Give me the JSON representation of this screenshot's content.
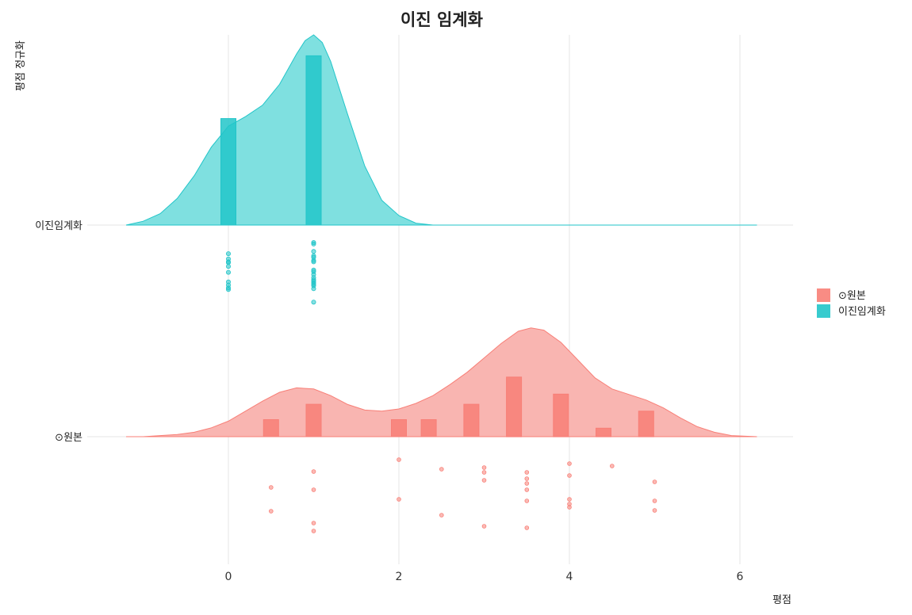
{
  "chart_data": {
    "type": "raincloud (density + histogram + jittered points)",
    "title": "이진 임계화",
    "xlabel": "평점",
    "ylabel": "평점 정규화",
    "xlim": [
      -1.2,
      6.2
    ],
    "x_ticks": [
      "0",
      "2",
      "4",
      "6"
    ],
    "x_tick_values": [
      0,
      2,
      4,
      6
    ],
    "grid": true,
    "legend": {
      "position": "right",
      "entries": [
        "⊙원본",
        "이진임계화"
      ]
    },
    "categories": [
      "이진임계화",
      "⊙원본"
    ],
    "series": [
      {
        "name": "이진임계화",
        "color": "#22C5C9",
        "fill": "#7FE0E0",
        "density": {
          "x": [
            -1.2,
            -1.0,
            -0.8,
            -0.6,
            -0.4,
            -0.2,
            0.0,
            0.2,
            0.4,
            0.6,
            0.8,
            0.9,
            1.0,
            1.1,
            1.2,
            1.4,
            1.6,
            1.8,
            2.0,
            2.2,
            2.4,
            6.2
          ],
          "y": [
            0.0,
            0.02,
            0.06,
            0.14,
            0.26,
            0.41,
            0.52,
            0.57,
            0.63,
            0.74,
            0.9,
            0.97,
            1.0,
            0.96,
            0.86,
            0.58,
            0.31,
            0.13,
            0.05,
            0.01,
            0.0,
            0.0
          ]
        },
        "histogram": {
          "x": [
            0,
            1
          ],
          "height": [
            0.56,
            0.89
          ]
        },
        "points": {
          "x": [
            0,
            0,
            0,
            0,
            0,
            0,
            0,
            0,
            0,
            0,
            1,
            1,
            1,
            1,
            1,
            1,
            1,
            1,
            1,
            1,
            1,
            1,
            1,
            1,
            1,
            1,
            1,
            1
          ],
          "jitter": [
            0.15,
            0.22,
            0.26,
            0.27,
            0.32,
            0.4,
            0.53,
            0.57,
            0.61,
            0.63,
            0.0,
            0.02,
            0.12,
            0.18,
            0.2,
            0.24,
            0.26,
            0.37,
            0.39,
            0.43,
            0.47,
            0.5,
            0.52,
            0.54,
            0.56,
            0.58,
            0.62,
            0.8
          ]
        }
      },
      {
        "name": "⊙원본",
        "color": "#F87F77",
        "fill": "#F9B5B1",
        "density": {
          "x": [
            -1.2,
            -1.0,
            -0.8,
            -0.6,
            -0.4,
            -0.2,
            0.0,
            0.2,
            0.4,
            0.6,
            0.8,
            1.0,
            1.2,
            1.4,
            1.6,
            1.8,
            2.0,
            2.2,
            2.4,
            2.6,
            2.8,
            3.0,
            3.2,
            3.4,
            3.55,
            3.7,
            3.9,
            4.1,
            4.3,
            4.5,
            4.7,
            4.9,
            5.1,
            5.3,
            5.5,
            5.7,
            5.9,
            6.2
          ],
          "y": [
            0.0,
            0.0,
            0.01,
            0.02,
            0.04,
            0.08,
            0.14,
            0.23,
            0.32,
            0.4,
            0.44,
            0.43,
            0.37,
            0.29,
            0.24,
            0.23,
            0.25,
            0.3,
            0.37,
            0.47,
            0.58,
            0.71,
            0.84,
            0.95,
            0.98,
            0.96,
            0.85,
            0.69,
            0.53,
            0.43,
            0.38,
            0.33,
            0.26,
            0.17,
            0.09,
            0.04,
            0.01,
            0.0
          ]
        },
        "histogram": {
          "x": [
            0.5,
            1,
            2,
            2.35,
            2.85,
            3.35,
            3.9,
            4.4,
            4.9
          ],
          "height": [
            0.1,
            0.19,
            0.1,
            0.1,
            0.19,
            0.35,
            0.25,
            0.05,
            0.15
          ]
        },
        "points": {
          "x": [
            0.5,
            0.5,
            1,
            1,
            1,
            1,
            2,
            2,
            2.5,
            2.5,
            3,
            3,
            3,
            3,
            3.5,
            3.5,
            3.5,
            3.5,
            3.5,
            3.5,
            4,
            4,
            4,
            4,
            4,
            4.5,
            5,
            5,
            5
          ],
          "jitter": [
            0.45,
            0.75,
            0.25,
            0.48,
            0.9,
            1.0,
            0.1,
            0.6,
            0.22,
            0.8,
            0.2,
            0.26,
            0.36,
            0.94,
            0.26,
            0.34,
            0.4,
            0.48,
            0.62,
            0.96,
            0.15,
            0.3,
            0.6,
            0.66,
            0.7,
            0.18,
            0.38,
            0.62,
            0.74
          ]
        }
      }
    ]
  }
}
